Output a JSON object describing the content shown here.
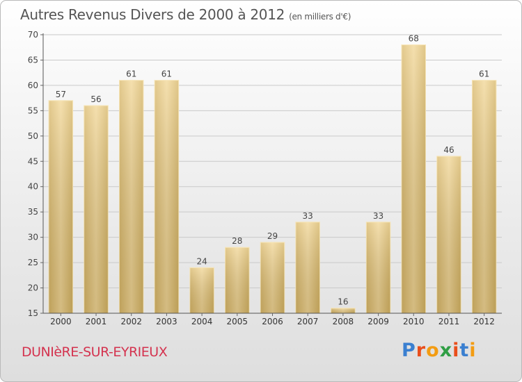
{
  "header": {
    "title": "Autres Revenus Divers de 2000 à 2012",
    "subtitle": "(en milliers d'€)"
  },
  "footer": {
    "commune": "DUNIèRE-SUR-EYRIEUX",
    "logo_text": "Proxiti",
    "logo_colors": [
      "#3a7fd0",
      "#e94e1b",
      "#f39c12",
      "#2f9e44",
      "#e94e1b",
      "#3a7fd0",
      "#f39c12"
    ]
  },
  "chart_data": {
    "type": "bar",
    "categories": [
      "2000",
      "2001",
      "2002",
      "2003",
      "2004",
      "2005",
      "2006",
      "2007",
      "2008",
      "2009",
      "2010",
      "2011",
      "2012"
    ],
    "values": [
      57,
      56,
      61,
      61,
      24,
      28,
      29,
      33,
      16,
      33,
      68,
      46,
      61
    ],
    "ylim": [
      15,
      70
    ],
    "yticks": [
      15,
      20,
      25,
      30,
      35,
      40,
      45,
      50,
      55,
      60,
      65,
      70
    ],
    "grid": true,
    "bar_color": "#e8c97a"
  }
}
